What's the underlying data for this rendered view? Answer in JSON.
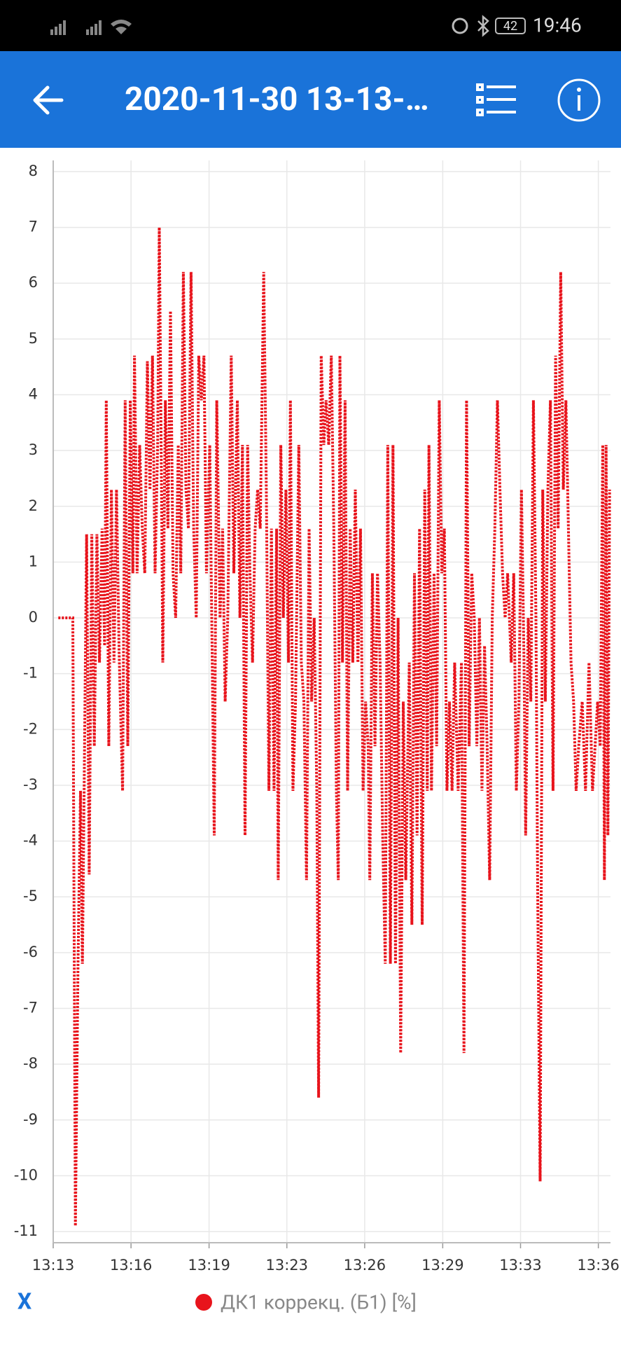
{
  "status_bar": {
    "battery": "42",
    "time": "19:46"
  },
  "app_bar": {
    "title": "2020-11-30 13-13-…"
  },
  "chart_data": {
    "type": "line",
    "xlabel": "X",
    "grid": true,
    "xlim": [
      0,
      23.85
    ],
    "ylim": [
      -11.2,
      8.2
    ],
    "xticks": [
      {
        "value": 0,
        "label": "13:13"
      },
      {
        "value": 3.33,
        "label": "13:16"
      },
      {
        "value": 6.67,
        "label": "13:19"
      },
      {
        "value": 10,
        "label": "13:23"
      },
      {
        "value": 13.33,
        "label": "13:26"
      },
      {
        "value": 16.67,
        "label": "13:29"
      },
      {
        "value": 20,
        "label": "13:33"
      },
      {
        "value": 23.33,
        "label": "13:36"
      }
    ],
    "yticks": [
      8,
      7,
      6,
      5,
      4,
      3,
      2,
      1,
      0,
      -1,
      -2,
      -3,
      -4,
      -5,
      -6,
      -7,
      -8,
      -9,
      -10,
      -11
    ],
    "x": [
      0.22,
      0.44,
      0.66,
      0.84,
      0.95,
      1.06,
      1.17,
      1.25,
      1.32,
      1.43,
      1.54,
      1.65,
      1.76,
      1.87,
      1.98,
      2.09,
      2.2,
      2.27,
      2.38,
      2.49,
      2.6,
      2.71,
      2.82,
      2.97,
      3.08,
      3.19,
      3.3,
      3.41,
      3.48,
      3.59,
      3.7,
      3.81,
      3.92,
      4.03,
      4.14,
      4.25,
      4.36,
      4.47,
      4.54,
      4.65,
      4.69,
      4.8,
      4.91,
      5.02,
      5.13,
      5.24,
      5.35,
      5.46,
      5.57,
      5.68,
      5.79,
      5.9,
      6.01,
      6.12,
      6.23,
      6.34,
      6.45,
      6.56,
      6.7,
      6.89,
      7.0,
      7.14,
      7.25,
      7.36,
      7.47,
      7.62,
      7.73,
      7.88,
      7.99,
      8.1,
      8.21,
      8.32,
      8.42,
      8.53,
      8.64,
      8.75,
      8.86,
      9.01,
      9.12,
      9.23,
      9.34,
      9.45,
      9.56,
      9.63,
      9.74,
      9.85,
      9.96,
      10.07,
      10.15,
      10.26,
      10.37,
      10.51,
      10.62,
      10.73,
      10.84,
      10.95,
      11.06,
      11.17,
      11.28,
      11.36,
      11.47,
      11.58,
      11.68,
      11.79,
      11.9,
      12.01,
      12.12,
      12.2,
      12.27,
      12.38,
      12.49,
      12.6,
      12.71,
      12.82,
      12.93,
      13.04,
      13.15,
      13.26,
      13.37,
      13.48,
      13.55,
      13.66,
      13.77,
      13.88,
      13.99,
      14.1,
      14.21,
      14.32,
      14.43,
      14.54,
      14.65,
      14.76,
      14.87,
      14.98,
      15.09,
      15.24,
      15.35,
      15.46,
      15.57,
      15.68,
      15.79,
      15.9,
      16.01,
      16.08,
      16.19,
      16.3,
      16.41,
      16.52,
      16.63,
      16.74,
      16.85,
      16.96,
      17.07,
      17.18,
      17.33,
      17.47,
      17.58,
      17.69,
      17.8,
      17.91,
      18.02,
      18.13,
      18.24,
      18.35,
      18.46,
      18.57,
      18.68,
      18.79,
      18.9,
      19.01,
      19.12,
      19.23,
      19.34,
      19.45,
      19.6,
      19.71,
      19.82,
      19.93,
      20.04,
      20.15,
      20.22,
      20.33,
      20.44,
      20.55,
      20.66,
      20.73,
      20.84,
      20.95,
      21.06,
      21.17,
      21.28,
      21.39,
      21.5,
      21.61,
      21.72,
      21.83,
      21.94,
      22.05,
      22.16,
      22.27,
      22.38,
      22.49,
      22.64,
      22.78,
      22.93,
      23.08,
      23.19,
      23.3,
      23.41,
      23.52,
      23.59,
      23.66,
      23.74,
      23.81
    ],
    "series": [
      {
        "name": "ДК1 коррекц. (Б1) [%]",
        "color": "#e8141c",
        "values": [
          0,
          0,
          0,
          0,
          -10.9,
          -6.2,
          -3.1,
          -6.2,
          -3.2,
          1.5,
          -4.6,
          1.5,
          -2.3,
          1.5,
          -0.8,
          1.6,
          -0.5,
          3.9,
          -2.3,
          2.3,
          -0.8,
          2.3,
          -0.6,
          -3.1,
          3.9,
          -2.3,
          3.9,
          0.8,
          4.7,
          0.8,
          3.1,
          1.6,
          0.8,
          4.6,
          2.3,
          4.7,
          0.8,
          3.1,
          7.0,
          1.6,
          -0.8,
          3.9,
          1.6,
          5.5,
          0.8,
          0,
          3.1,
          0.8,
          6.2,
          2.3,
          1.6,
          6.2,
          1.6,
          0,
          4.7,
          3.9,
          4.7,
          0.8,
          3.1,
          -3.9,
          3.9,
          0,
          1.6,
          -1.5,
          0,
          4.7,
          0.8,
          3.9,
          0,
          3.1,
          -3.9,
          3.1,
          0.8,
          -0.8,
          1.6,
          2.3,
          1.6,
          6.2,
          2.3,
          -3.1,
          1.6,
          -3.1,
          1.6,
          -4.7,
          3.1,
          0,
          2.3,
          -0.8,
          3.9,
          -3.1,
          -1.5,
          3.1,
          -0.8,
          -1.5,
          -4.7,
          1.6,
          -1.5,
          0,
          -3.1,
          -8.6,
          4.7,
          3.1,
          3.9,
          3.1,
          4.7,
          1.6,
          -3.1,
          -4.7,
          4.7,
          -0.8,
          3.9,
          -3.1,
          1.6,
          -0.8,
          2.3,
          -0.8,
          1.6,
          -3.1,
          -1.5,
          -2.3,
          -4.7,
          0.8,
          -2.3,
          0.8,
          -0.8,
          -3.9,
          -6.2,
          3.1,
          -6.2,
          3.1,
          -6.2,
          0,
          -7.8,
          -1.5,
          -4.7,
          -0.8,
          -5.5,
          0.8,
          -3.9,
          1.6,
          -5.5,
          2.3,
          -3.1,
          3.1,
          -3.1,
          0.8,
          -2.3,
          3.9,
          0.8,
          1.6,
          -3.1,
          -1.5,
          -3.1,
          -0.8,
          -3.1,
          -0.8,
          -7.8,
          3.9,
          -2.3,
          0.8,
          0,
          -2.3,
          0,
          -3.1,
          -0.5,
          -2.3,
          -4.7,
          0,
          1.6,
          3.9,
          2.3,
          0.8,
          0,
          0.8,
          -0.8,
          0.8,
          -3.1,
          -1.5,
          2.3,
          -0.8,
          -3.9,
          0,
          -1.5,
          3.9,
          0,
          -4.7,
          -10.1,
          2.3,
          -1.5,
          2.3,
          3.9,
          -3.1,
          4.7,
          1.6,
          6.2,
          2.3,
          3.9,
          1.6,
          -0.8,
          -1.5,
          -3.1,
          -2.3,
          -1.5,
          -3.1,
          -0.8,
          -3.1,
          -2.3,
          -1.5,
          -2.3,
          3.1,
          -4.7,
          3.1,
          -3.9,
          2.3
        ]
      }
    ]
  }
}
